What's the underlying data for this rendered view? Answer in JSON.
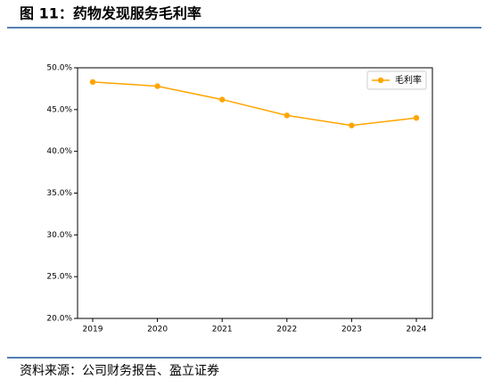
{
  "chart_data": {
    "type": "line",
    "title": "图 11：药物发现服务毛利率",
    "source": "资料来源：公司财务报告、盈立证券",
    "categories": [
      "2019",
      "2020",
      "2021",
      "2022",
      "2023",
      "2024"
    ],
    "series": [
      {
        "name": "毛利率",
        "color": "#ffa500",
        "values": [
          48.3,
          47.8,
          46.2,
          44.3,
          43.1,
          44.0
        ]
      }
    ],
    "ylim": [
      20,
      50
    ],
    "yticks": [
      {
        "value": 20,
        "label": "20.0%"
      },
      {
        "value": 25,
        "label": "25.0%"
      },
      {
        "value": 30,
        "label": "30.0%"
      },
      {
        "value": 35,
        "label": "35.0%"
      },
      {
        "value": 40,
        "label": "40.0%"
      },
      {
        "value": 45,
        "label": "45.0%"
      },
      {
        "value": 50,
        "label": "50.0%"
      }
    ],
    "legend": "upper right"
  }
}
